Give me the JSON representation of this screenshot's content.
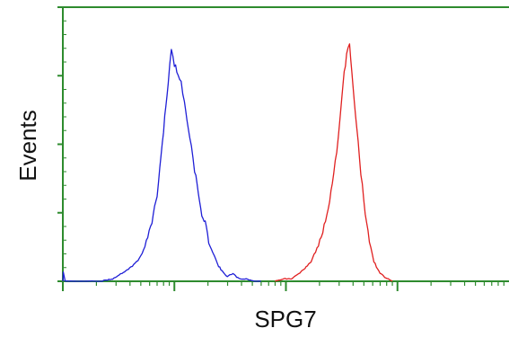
{
  "chart_data": {
    "type": "line",
    "title": "",
    "xlabel": "SPG7",
    "ylabel": "Events",
    "x_scale": "log",
    "xlim": [
      1,
      10000
    ],
    "ylim": [
      0,
      100
    ],
    "grid": false,
    "legend": "none",
    "colors": {
      "frame": "#2e8b2e",
      "series": [
        "#1f1fd6",
        "#e02020"
      ]
    },
    "series": [
      {
        "color": "#1f1fd6",
        "x": [
          1.001,
          1.01,
          1.05,
          2.2,
          2.8,
          3.3,
          4.2,
          5.0,
          5.6,
          6.3,
          7.0,
          7.6,
          8.2,
          8.8,
          9.4,
          10.0,
          10.8,
          11.5,
          12.3,
          13.3,
          14.2,
          15.2,
          16.4,
          17.6,
          18.9,
          20.3,
          22.1,
          24.3,
          26.8,
          29.8,
          33.5,
          38.0,
          44.0,
          52.0,
          60.0
        ],
        "y": [
          0,
          4,
          0,
          0,
          1,
          3,
          6,
          10,
          16,
          24,
          35,
          50,
          67,
          80,
          94,
          88,
          84,
          80,
          73,
          62,
          55,
          45,
          36,
          26,
          24,
          16,
          12,
          7,
          4,
          2,
          3,
          1,
          1,
          0,
          0
        ]
      },
      {
        "color": "#e02020",
        "x": [
          80,
          96,
          112,
          130,
          148,
          168,
          190,
          214,
          240,
          268,
          295,
          316,
          333,
          350,
          372,
          400,
          432,
          470,
          514,
          560,
          615,
          680,
          750,
          830,
          900
        ],
        "y": [
          0,
          1,
          1,
          3,
          5,
          8,
          13,
          20,
          30,
          43,
          58,
          73,
          85,
          91,
          96,
          78,
          62,
          44,
          28,
          16,
          8,
          4,
          2,
          1,
          0
        ]
      }
    ]
  }
}
